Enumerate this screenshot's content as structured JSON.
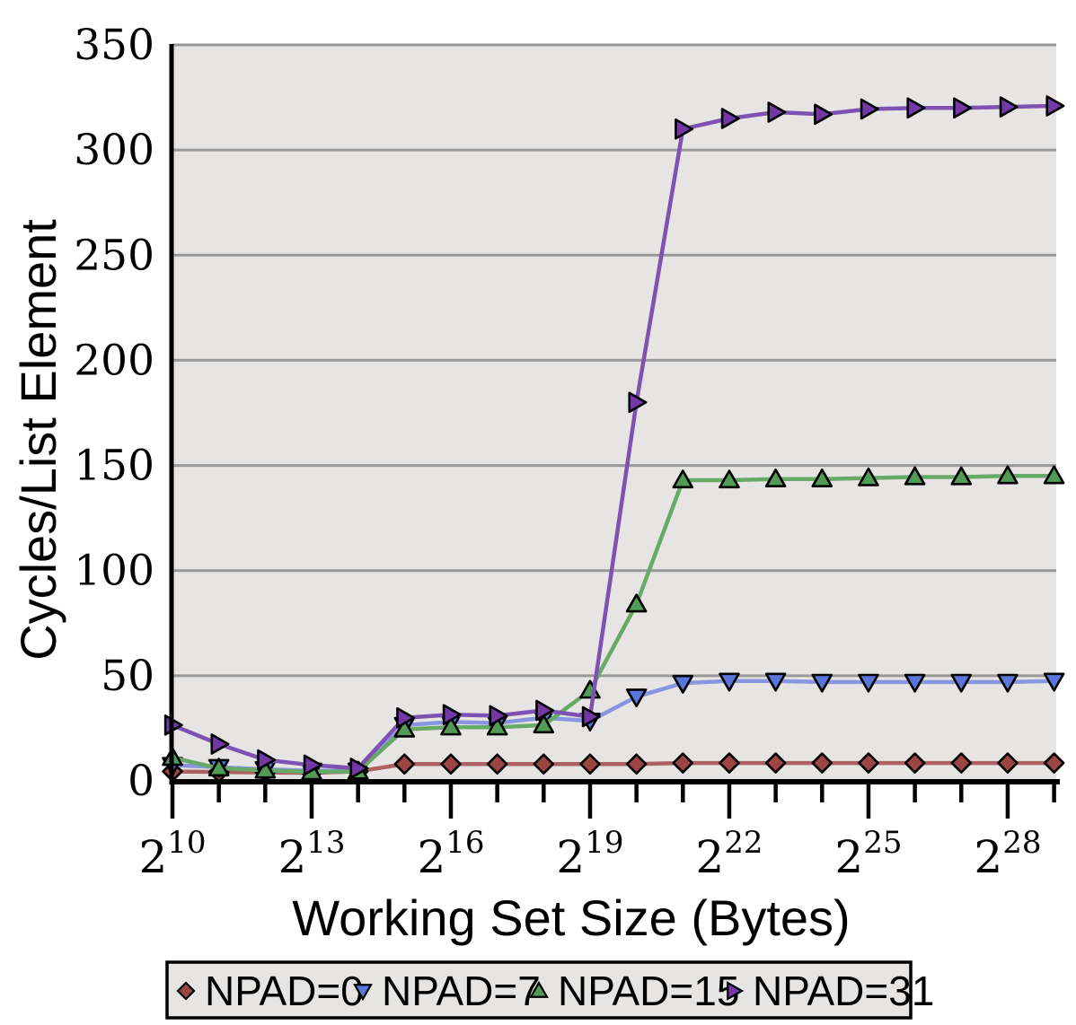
{
  "chart_data": {
    "type": "line",
    "title": "",
    "xlabel": "Working Set Size (Bytes)",
    "ylabel": "Cycles/List Element",
    "x_scale": "log2",
    "x_powers": [
      10,
      11,
      12,
      13,
      14,
      15,
      16,
      17,
      18,
      19,
      20,
      21,
      22,
      23,
      24,
      25,
      26,
      27,
      28,
      29
    ],
    "x_major_tick_powers": [
      10,
      13,
      16,
      19,
      22,
      25,
      28
    ],
    "x_tick_base": "2",
    "ylim": [
      0,
      350
    ],
    "y_ticks": [
      0,
      50,
      100,
      150,
      200,
      250,
      300,
      350
    ],
    "grid": true,
    "legend_position": "bottom",
    "colors": {
      "plot_background": "#e6e5e3",
      "grid_line": "#999999",
      "axis": "#000000",
      "legend_background": "#e6e5e3",
      "legend_border": "#000000",
      "text": "#000000"
    },
    "series": [
      {
        "name": "NPAD=0",
        "marker": "diamond",
        "line_color": "#ad6161",
        "marker_fill": "#9c4545",
        "values": [
          4.5,
          4.2,
          4,
          3.8,
          4.5,
          8,
          8,
          8,
          8,
          8,
          8,
          8.5,
          8.5,
          8.5,
          8.5,
          8.5,
          8.5,
          8.5,
          8.5,
          8.5
        ]
      },
      {
        "name": "NPAD=7",
        "marker": "triangle-down",
        "line_color": "#8896e0",
        "marker_fill": "#5b76da",
        "values": [
          7.5,
          6.5,
          5.5,
          4.8,
          4.8,
          26.5,
          28,
          27.5,
          30,
          28.5,
          40,
          46.5,
          47.5,
          47.5,
          47,
          47,
          47,
          47,
          47,
          47.5
        ]
      },
      {
        "name": "NPAD=15",
        "marker": "triangle-up",
        "line_color": "#67aa67",
        "marker_fill": "#519b57",
        "values": [
          11,
          6,
          5,
          4.2,
          4.5,
          24.5,
          25.5,
          25.5,
          26.5,
          43,
          84,
          143,
          143,
          143.5,
          143.5,
          144,
          144.5,
          144.5,
          145,
          145
        ]
      },
      {
        "name": "NPAD=31",
        "marker": "triangle-right",
        "line_color": "#7e52b2",
        "marker_fill": "#7138a6",
        "values": [
          26.5,
          17.5,
          10,
          7.5,
          6,
          30,
          31.5,
          31,
          33.5,
          30.5,
          180,
          310,
          315,
          318,
          317,
          319.5,
          320,
          320,
          320.5,
          321
        ]
      }
    ]
  }
}
